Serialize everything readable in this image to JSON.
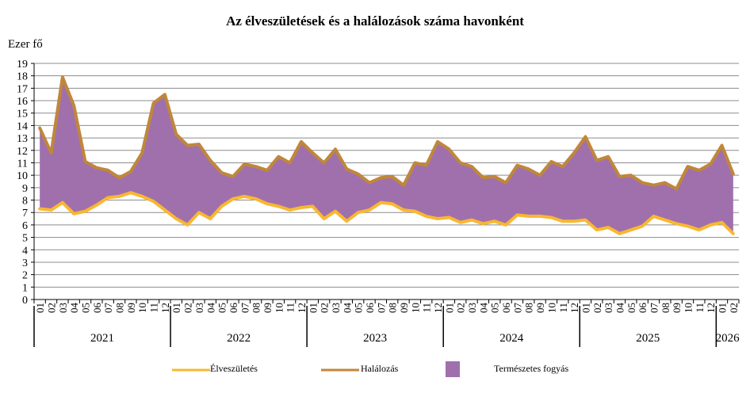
{
  "chart_data": {
    "type": "area",
    "title": "Az élveszületések és a halálozások száma havonként",
    "ylabel": "Ezer fő",
    "ylim": [
      0,
      19
    ],
    "yticks": [
      0,
      1,
      2,
      3,
      4,
      5,
      6,
      7,
      8,
      9,
      10,
      11,
      12,
      13,
      14,
      15,
      16,
      17,
      18,
      19
    ],
    "grid": true,
    "legend_position": "bottom",
    "x_month_labels": [
      "01",
      "02",
      "03",
      "04",
      "05",
      "06",
      "07",
      "08",
      "09",
      "10",
      "11",
      "12",
      "01",
      "02",
      "03",
      "04",
      "05",
      "06",
      "07",
      "08",
      "09",
      "10",
      "11",
      "12",
      "01",
      "02",
      "03",
      "04",
      "05",
      "06",
      "07",
      "08",
      "09",
      "10",
      "11",
      "12",
      "01",
      "02",
      "03",
      "04",
      "05",
      "06",
      "07",
      "08",
      "09",
      "10",
      "11",
      "12",
      "01",
      "02",
      "03",
      "04",
      "05",
      "06",
      "07",
      "08",
      "09",
      "10",
      "11",
      "12",
      "01",
      "02"
    ],
    "year_groups": [
      {
        "label": "2021",
        "months": 12
      },
      {
        "label": "2022",
        "months": 12
      },
      {
        "label": "2023",
        "months": 12
      },
      {
        "label": "2024",
        "months": 12
      },
      {
        "label": "2025",
        "months": 12
      },
      {
        "label": "2026",
        "months": 2
      }
    ],
    "series": [
      {
        "name": "Élveszületés",
        "color": "#f9b731",
        "values": [
          7.3,
          7.2,
          7.8,
          6.9,
          7.1,
          7.6,
          8.2,
          8.3,
          8.6,
          8.3,
          7.9,
          7.2,
          6.5,
          6.0,
          7.0,
          6.5,
          7.5,
          8.1,
          8.3,
          8.1,
          7.7,
          7.5,
          7.2,
          7.4,
          7.5,
          6.5,
          7.1,
          6.3,
          7.0,
          7.2,
          7.8,
          7.7,
          7.2,
          7.1,
          6.7,
          6.5,
          6.6,
          6.2,
          6.4,
          6.1,
          6.3,
          6.0,
          6.8,
          6.7,
          6.7,
          6.6,
          6.3,
          6.3,
          6.4,
          5.6,
          5.8,
          5.3,
          5.6,
          5.9,
          6.7,
          6.4,
          6.1,
          5.9,
          5.6,
          6.0,
          6.2,
          5.3
        ]
      },
      {
        "name": "Halálozás",
        "color": "#c0873a",
        "values": [
          13.8,
          11.8,
          17.9,
          15.6,
          11.1,
          10.6,
          10.4,
          9.8,
          10.3,
          11.8,
          15.8,
          16.5,
          13.3,
          12.4,
          12.5,
          11.2,
          10.2,
          9.9,
          10.9,
          10.7,
          10.4,
          11.5,
          11.0,
          12.7,
          11.8,
          11.0,
          12.1,
          10.5,
          10.1,
          9.4,
          9.8,
          9.9,
          9.2,
          11.0,
          10.8,
          12.7,
          12.1,
          11.0,
          10.7,
          9.8,
          9.9,
          9.4,
          10.8,
          10.5,
          10.0,
          11.1,
          10.7,
          11.8,
          13.1,
          11.2,
          11.5,
          9.9,
          10.0,
          9.4,
          9.2,
          9.4,
          8.9,
          10.7,
          10.4,
          10.9,
          12.4,
          10.1
        ]
      },
      {
        "name": "Természetes fogyás",
        "color": "#a070ad",
        "kind": "area-between"
      }
    ]
  }
}
